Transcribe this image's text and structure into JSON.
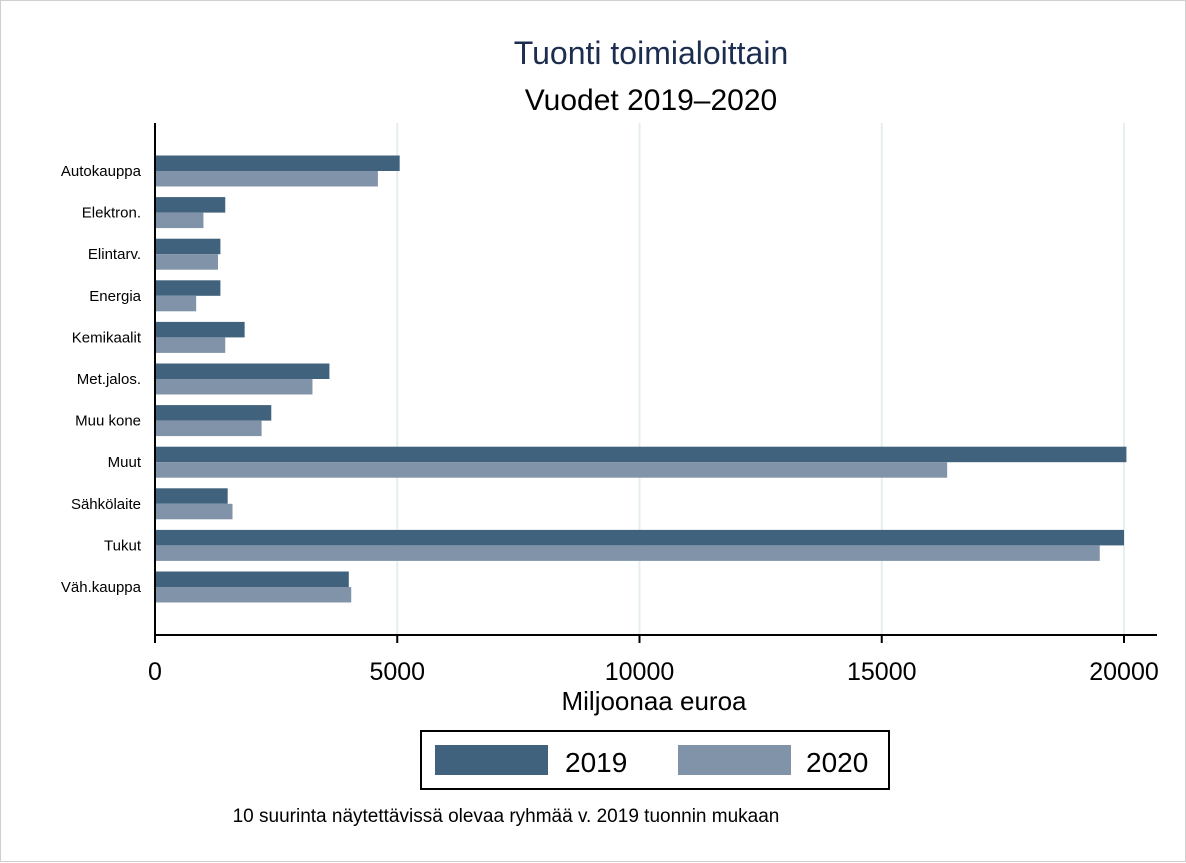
{
  "chart_data": {
    "type": "bar",
    "orientation": "horizontal",
    "title": "Tuonti toimialoittain",
    "subtitle": "Vuodet 2019–2020",
    "xlabel": "Miljoonaa euroa",
    "note": "10 suurinta näytettävissä olevaa ryhmää v. 2019 tuonnin mukaan",
    "xlim": [
      0,
      20000
    ],
    "xticks": [
      "0",
      "5000",
      "10000",
      "15000",
      "20000"
    ],
    "xtick_values": [
      0,
      5000,
      10000,
      15000,
      20000
    ],
    "grid": "vertical",
    "legend_position": "bottom",
    "categories": [
      "Autokauppa",
      "Elektron.",
      "Elintarv.",
      "Energia",
      "Kemikaalit",
      "Met.jalos.",
      "Muu kone",
      "Muut",
      "Sähkölaite",
      "Tukut",
      "Väh.kauppa"
    ],
    "series": [
      {
        "name": "2019",
        "color": "#41627c",
        "values": [
          5050,
          1450,
          1350,
          1350,
          1850,
          3600,
          2400,
          20050,
          1500,
          20000,
          4000
        ]
      },
      {
        "name": "2020",
        "color": "#8193a8",
        "values": [
          4600,
          1000,
          1300,
          850,
          1450,
          3250,
          2200,
          16350,
          1600,
          19500,
          4050
        ]
      }
    ]
  }
}
